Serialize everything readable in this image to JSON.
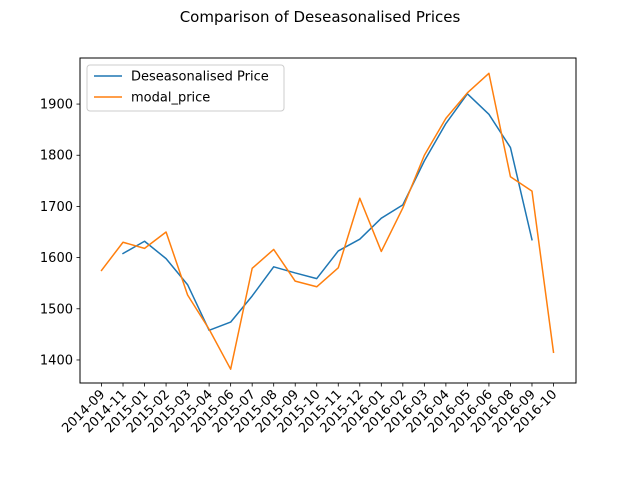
{
  "chart_data": {
    "type": "line",
    "title": "Comparison of Deseasonalised Prices",
    "xlabel": "",
    "ylabel": "",
    "categories": [
      "2014-09",
      "2014-11",
      "2015-01",
      "2015-02",
      "2015-03",
      "2015-04",
      "2015-06",
      "2015-07",
      "2015-08",
      "2015-09",
      "2015-10",
      "2015-11",
      "2015-12",
      "2016-01",
      "2016-02",
      "2016-03",
      "2016-04",
      "2016-05",
      "2016-06",
      "2016-08",
      "2016-09",
      "2016-10"
    ],
    "yticks": [
      1400,
      1500,
      1600,
      1700,
      1800,
      1900
    ],
    "ylim": [
      1355,
      1990
    ],
    "grid": false,
    "legend_position": "top-left",
    "series": [
      {
        "name": "Deseasonalised Price",
        "color": "#1f77b4",
        "values": [
          null,
          1608,
          1632,
          1598,
          1547,
          1458,
          1474,
          1525,
          1582,
          1570,
          1559,
          1613,
          1636,
          1677,
          1703,
          1789,
          1862,
          1920,
          1880,
          1815,
          1635,
          null
        ]
      },
      {
        "name": "modal_price",
        "color": "#ff7f0e",
        "values": [
          1575,
          1630,
          1618,
          1650,
          1527,
          1460,
          1382,
          1579,
          1616,
          1554,
          1543,
          1580,
          1716,
          1612,
          1697,
          1800,
          1872,
          1922,
          1960,
          1758,
          1730,
          1415
        ]
      }
    ]
  }
}
